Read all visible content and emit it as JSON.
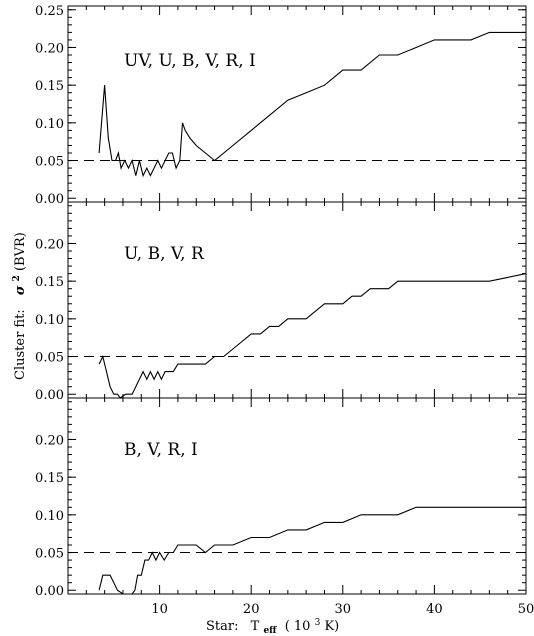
{
  "chart_data": {
    "type": "line",
    "layout": "stacked-panels",
    "shared_x": {
      "label_prefix": "Star:",
      "label_main": "T",
      "label_sub": "eff",
      "label_paren_open": "( 10",
      "label_sup": "3",
      "label_paren_close": " K)",
      "xlim": [
        0,
        50
      ],
      "ticks": [
        10,
        20,
        30,
        40,
        50
      ],
      "tick_labels": [
        "10",
        "20",
        "30",
        "40",
        "50"
      ]
    },
    "shared_y": {
      "label_prefix": "Cluster fit:",
      "label_sigma": "σ",
      "label_sup": "2",
      "label_suffix": "(BVR)"
    },
    "threshold": 0.05,
    "panels": [
      {
        "label": "UV,  U,  B,  V,  R,  I",
        "ylim": [
          -0.005,
          0.255
        ],
        "yticks": [
          0.0,
          0.05,
          0.1,
          0.15,
          0.2,
          0.25
        ],
        "ytick_labels": [
          "0.00",
          "0.05",
          "0.10",
          "0.15",
          "0.20",
          "0.25"
        ],
        "x": [
          3.4,
          4.0,
          4.4,
          4.8,
          5.2,
          5.5,
          5.8,
          6.2,
          6.6,
          7.0,
          7.4,
          7.8,
          8.2,
          8.6,
          9.0,
          9.4,
          9.8,
          10.2,
          10.6,
          11.0,
          11.4,
          11.8,
          12.2,
          12.5,
          12.8,
          13.3,
          14.0,
          15.0,
          16.0,
          18.0,
          20.0,
          22.0,
          24.0,
          26.0,
          28.0,
          30.0,
          32.0,
          34.0,
          36.0,
          38.0,
          40.0,
          42.0,
          44.0,
          46.0,
          48.0,
          50.0
        ],
        "y": [
          0.06,
          0.15,
          0.08,
          0.05,
          0.05,
          0.06,
          0.04,
          0.05,
          0.04,
          0.05,
          0.03,
          0.05,
          0.03,
          0.04,
          0.03,
          0.04,
          0.05,
          0.04,
          0.05,
          0.06,
          0.06,
          0.04,
          0.05,
          0.1,
          0.09,
          0.08,
          0.07,
          0.06,
          0.05,
          0.07,
          0.09,
          0.11,
          0.13,
          0.14,
          0.15,
          0.17,
          0.17,
          0.19,
          0.19,
          0.2,
          0.21,
          0.21,
          0.21,
          0.22,
          0.22,
          0.22
        ]
      },
      {
        "label": "U,  B,  V,  R",
        "ylim": [
          -0.005,
          0.255
        ],
        "yticks": [
          0.0,
          0.05,
          0.1,
          0.15,
          0.2
        ],
        "ytick_labels": [
          "0.00",
          "0.05",
          "0.10",
          "0.15",
          "0.20"
        ],
        "x": [
          3.4,
          3.8,
          4.2,
          4.6,
          5.0,
          5.4,
          5.7,
          6.3,
          6.6,
          7.0,
          7.4,
          7.8,
          8.2,
          8.6,
          9.0,
          9.4,
          9.8,
          10.2,
          10.6,
          11.0,
          11.5,
          12.0,
          13.0,
          14.0,
          15.0,
          16.0,
          17.0,
          18.0,
          19.0,
          20.0,
          21.0,
          22.0,
          23.0,
          24.0,
          25.0,
          26.0,
          27.0,
          28.0,
          29.0,
          30.0,
          31.0,
          32.0,
          33.0,
          34.0,
          35.0,
          36.0,
          38.0,
          40.0,
          42.0,
          44.0,
          46.0,
          48.0,
          50.0
        ],
        "y": [
          0.04,
          0.05,
          0.03,
          0.01,
          0.0,
          0.0,
          -0.005,
          0.0,
          0.0,
          0.0,
          0.01,
          0.02,
          0.03,
          0.02,
          0.03,
          0.02,
          0.03,
          0.02,
          0.03,
          0.03,
          0.03,
          0.04,
          0.04,
          0.04,
          0.04,
          0.05,
          0.05,
          0.06,
          0.07,
          0.08,
          0.08,
          0.09,
          0.09,
          0.1,
          0.1,
          0.1,
          0.11,
          0.12,
          0.12,
          0.12,
          0.13,
          0.13,
          0.14,
          0.14,
          0.14,
          0.15,
          0.15,
          0.15,
          0.15,
          0.15,
          0.15,
          0.155,
          0.16
        ]
      },
      {
        "label": "B,  V,  R,  I",
        "ylim": [
          -0.005,
          0.255
        ],
        "yticks": [
          0.0,
          0.05,
          0.1,
          0.15,
          0.2
        ],
        "ytick_labels": [
          "0.00",
          "0.05",
          "0.10",
          "0.15",
          "0.20"
        ],
        "x": [
          3.4,
          3.8,
          4.2,
          4.6,
          5.0,
          5.4,
          6.0,
          7.0,
          7.3,
          7.6,
          8.0,
          8.4,
          8.8,
          9.2,
          9.6,
          10.0,
          10.5,
          11.0,
          11.5,
          12.0,
          13.0,
          14.0,
          15.0,
          16.0,
          18.0,
          20.0,
          22.0,
          24.0,
          26.0,
          28.0,
          30.0,
          32.0,
          34.0,
          36.0,
          38.0,
          40.0,
          42.0,
          44.0,
          46.0,
          48.0,
          50.0
        ],
        "y": [
          0.0,
          0.02,
          0.02,
          0.02,
          0.01,
          0.0,
          -0.005,
          -0.005,
          0.0,
          0.02,
          0.02,
          0.04,
          0.04,
          0.05,
          0.04,
          0.05,
          0.04,
          0.05,
          0.05,
          0.06,
          0.06,
          0.06,
          0.05,
          0.06,
          0.06,
          0.07,
          0.07,
          0.08,
          0.08,
          0.09,
          0.09,
          0.1,
          0.1,
          0.1,
          0.11,
          0.11,
          0.11,
          0.11,
          0.11,
          0.11,
          0.11
        ]
      }
    ]
  }
}
